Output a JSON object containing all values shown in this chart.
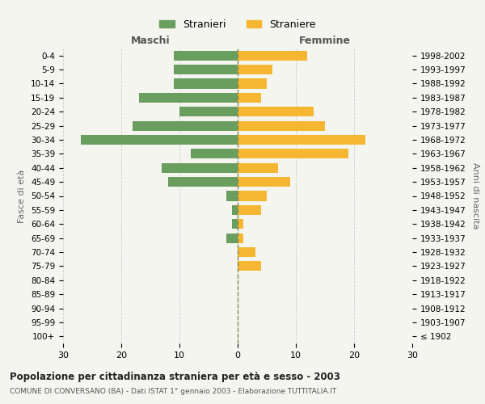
{
  "age_groups": [
    "100+",
    "95-99",
    "90-94",
    "85-89",
    "80-84",
    "75-79",
    "70-74",
    "65-69",
    "60-64",
    "55-59",
    "50-54",
    "45-49",
    "40-44",
    "35-39",
    "30-34",
    "25-29",
    "20-24",
    "15-19",
    "10-14",
    "5-9",
    "0-4"
  ],
  "birth_years": [
    "≤ 1902",
    "1903-1907",
    "1908-1912",
    "1913-1917",
    "1918-1922",
    "1923-1927",
    "1928-1932",
    "1933-1937",
    "1938-1942",
    "1943-1947",
    "1948-1952",
    "1953-1957",
    "1958-1962",
    "1963-1967",
    "1968-1972",
    "1973-1977",
    "1978-1982",
    "1983-1987",
    "1988-1992",
    "1993-1997",
    "1998-2002"
  ],
  "males": [
    0,
    0,
    0,
    0,
    0,
    0,
    0,
    2,
    1,
    1,
    2,
    12,
    13,
    8,
    27,
    18,
    10,
    17,
    11,
    11,
    11
  ],
  "females": [
    0,
    0,
    0,
    0,
    0,
    4,
    3,
    1,
    1,
    4,
    5,
    9,
    7,
    19,
    22,
    15,
    13,
    4,
    5,
    6,
    12
  ],
  "male_color": "#6a9e5f",
  "female_color": "#f5b731",
  "background_color": "#f5f5f0",
  "grid_color": "#cccccc",
  "xlim": 30,
  "title": "Popolazione per cittadinanza straniera per età e sesso - 2003",
  "subtitle": "COMUNE DI CONVERSANO (BA) - Dati ISTAT 1° gennaio 2003 - Elaborazione TUTTITALIA.IT",
  "xlabel_left": "Maschi",
  "xlabel_right": "Femmine",
  "ylabel_left": "Fasce di età",
  "ylabel_right": "Anni di nascita",
  "legend_stranieri": "Stranieri",
  "legend_straniere": "Straniere",
  "center_line_color": "#888855"
}
